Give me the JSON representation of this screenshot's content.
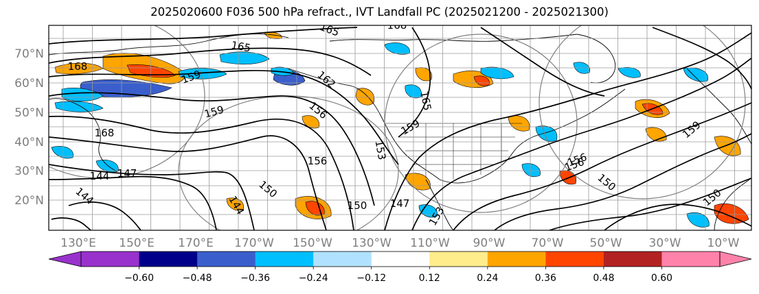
{
  "title": "2025020600 F036 500 hPa refract., IVT Landfall PC (2025021200 - 2025021300)",
  "lat_labels": [
    "70°N",
    "60°N",
    "50°N",
    "40°N",
    "30°N",
    "20°N"
  ],
  "lon_labels": [
    "130°E",
    "150°E",
    "170°E",
    "170°W",
    "150°W",
    "130°W",
    "110°W",
    "90°W",
    "70°W",
    "50°W",
    "30°W",
    "10°W"
  ],
  "colorbar": {
    "colors": [
      "#9932cc",
      "#00008b",
      "#3a5fcd",
      "#00bfff",
      "#b0e2ff",
      "#ffffff",
      "#ffec8b",
      "#ffa500",
      "#ff4500",
      "#b22222",
      "#ff82ab"
    ],
    "tick_labels": [
      "−0.60",
      "−0.48",
      "−0.36",
      "−0.24",
      "−0.12",
      "0.12",
      "0.24",
      "0.36",
      "0.48",
      "0.60"
    ]
  },
  "contour_labels": [
    "168",
    "165",
    "165",
    "168",
    "159",
    "162",
    "156",
    "159",
    "165",
    "168",
    "159",
    "153",
    "156",
    "156",
    "153",
    "150",
    "144",
    "147",
    "144",
    "150",
    "150",
    "147",
    "144",
    "150",
    "156",
    "159"
  ]
}
